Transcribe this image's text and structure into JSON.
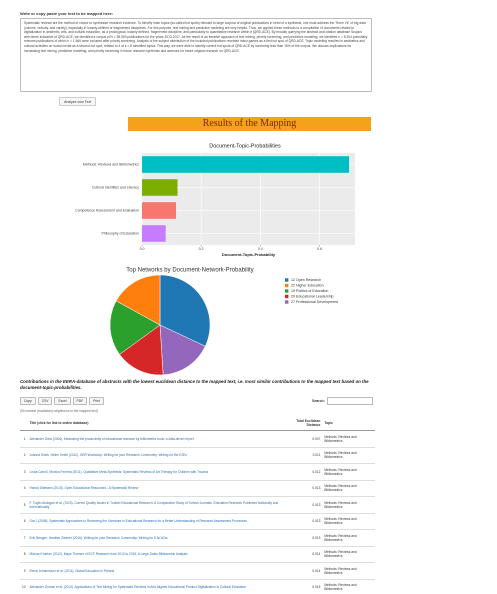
{
  "input": {
    "label": "Write or copy paste your text to be mapped here:",
    "text": "Systematic reviews are the method of choice to synthesize research evidence. To identify main topics (so-called hot spots) relevant to large corpora of original publications in need of a synthesis, one must address the \"three Vs\" of big data (volume, velocity, and variety), especially in loosely defined or fragmented disciplines. For this purpose, text mining and predictive modeling are very helpful. Thus, we applied these methods to a compilation of documents related to digitalization in aesthetic, arts, and cultural education, as a prototypical, loosely defined, fragmented discipline, and particularly to quantitative research within it (QRD-ACE). By broadly querying the abstract and citation database Scopus with terms indicative of QRD-ACE, we identified a corpus of N = 55,553 publications for the years 2013-2017. As the result of an iterative approach of text mining, priority screening, and predictive modeling, we identified n = 8,304 potentially relevant publications of which n = 1,666 were included after priority screening. Analysis of the subject distribution of the included publications revealed video games as a first hot spot of QRD-ACE. Topic modeling resulted in aesthetics and cultural activities on social media as a second hot spot, related to 4 of k = 8 identified topics. This way, we were able to identify current hot spots of QRD-ACE by screening less than 15% of the corpus. We discuss implications for harnessing text mining, predictive modeling, and priority screening in future research synthesis and avenues for future original research on QRD-ACE.",
    "button": "Analyze own Text"
  },
  "results_heading": "Results of the Mapping",
  "chart_data": [
    {
      "type": "hbar",
      "title": "Document-Topic-Probabilities",
      "x_label": "Document-Topic-Probability",
      "categories": [
        "Methods: Reviews and Bibliometrics",
        "Cultural Identities and Literacy",
        "Competence Assessment and Evaluation",
        "Philosophy of Education"
      ],
      "values": [
        0.7,
        0.12,
        0.115,
        0.08
      ],
      "colors": [
        "#00bfc4",
        "#7cae00",
        "#f8766d",
        "#c77cff"
      ],
      "xlim": [
        0,
        0.72
      ],
      "xticks": [
        {
          "value": 0,
          "label": "0.0"
        },
        {
          "value": 0.2,
          "label": "0.2"
        },
        {
          "value": 0.4,
          "label": "0.4"
        },
        {
          "value": 0.6,
          "label": "0.6"
        }
      ],
      "grid": true
    },
    {
      "type": "pie",
      "title": "Top Networks by Document-Network-Probability",
      "categories": [
        "12 Open Research",
        "22 Higher Education",
        "19 Politics of Education",
        "20 Educational Leadership",
        "27 Professional Development"
      ],
      "values": [
        32,
        17,
        18,
        16,
        17
      ],
      "colors": [
        "#1f77b4",
        "#ff7f0e",
        "#2ca02c",
        "#d62728",
        "#9467bd"
      ]
    }
  ],
  "table": {
    "caption": "Contributions in the EERA-database of abstracts with the lowest euclidean distance to the mapped text, i.e. most similar contributions to the mapped text based on the document-topic-probabilities.",
    "buttons": [
      "Copy",
      "CSV",
      "Excel",
      "PDF",
      "Print"
    ],
    "search_label": "Search:",
    "note": "(50 nearest (euclidean) neighbours to the mapped text)",
    "columns": [
      "Title (click for link to online database)",
      "Total Euclidean Distance",
      "Topic"
    ],
    "rows": [
      [
        1,
        "Alexander Dietz (2006). Measuring the productivity of educational research by bibliometric tools: a data-driven report",
        0.007,
        "Methods: Reviews and Bibliometrics"
      ],
      [
        2,
        "Joanna Sinek, Helen Smith (2012). OER Workshop: Writing for your Research Community: Writing for the EJEs",
        0.011,
        "Methods: Reviews and Bibliometrics"
      ],
      [
        3,
        "Linda Carroll, Monica Ferreira (2011). Qualitative Meta-Synthesis: Systematic Reviews of Art Therapy for Children with Trauma",
        0.012,
        "Methods: Reviews and Bibliometrics"
      ],
      [
        4,
        "Hanna Dittmann (2015). Open Educational Resources - A Systematic Review",
        0.013,
        "Methods: Reviews and Bibliometrics"
      ],
      [
        5,
        "F. Tuglin Akdogan et al. (2015). Current Quality Issues in Turkish Educational Research: A Comparative Study of Turkish Journals, Education Research Published Nationally and Internationally",
        0.013,
        "Methods: Reviews and Bibliometrics"
      ],
      [
        6,
        "Gar J (2008). Systematic Approaches to Reviewing the Literature in Educational Research for a Better Understanding of Research Assessment Processes",
        0.013,
        "Methods: Reviews and Bibliometrics"
      ],
      [
        7,
        "Erik Nengen, Heather Zimmer (2016). Writing for your Research Community: Writing for EJs/JLDs",
        0.013,
        "Methods: Reviews and Bibliometrics"
      ],
      [
        8,
        "Michael Hueber (2012). Major Themes of ECF Research from 2012 to 2015: A Large-Scale Bibliometric Analysis",
        0.014,
        "Methods: Reviews and Bibliometrics"
      ],
      [
        9,
        "Elena Johannsson et al. (2011). Global Education in Finland",
        0.014,
        "Methods: Reviews and Bibliometrics"
      ],
      [
        10,
        "Alexander Grosse et al. (2013). Applications of Text Mining for Systematic Reviews in Arts Aligned Educational Product Digitalization in Cultural Education",
        0.015,
        "Methods: Reviews and Bibliometrics"
      ]
    ]
  }
}
